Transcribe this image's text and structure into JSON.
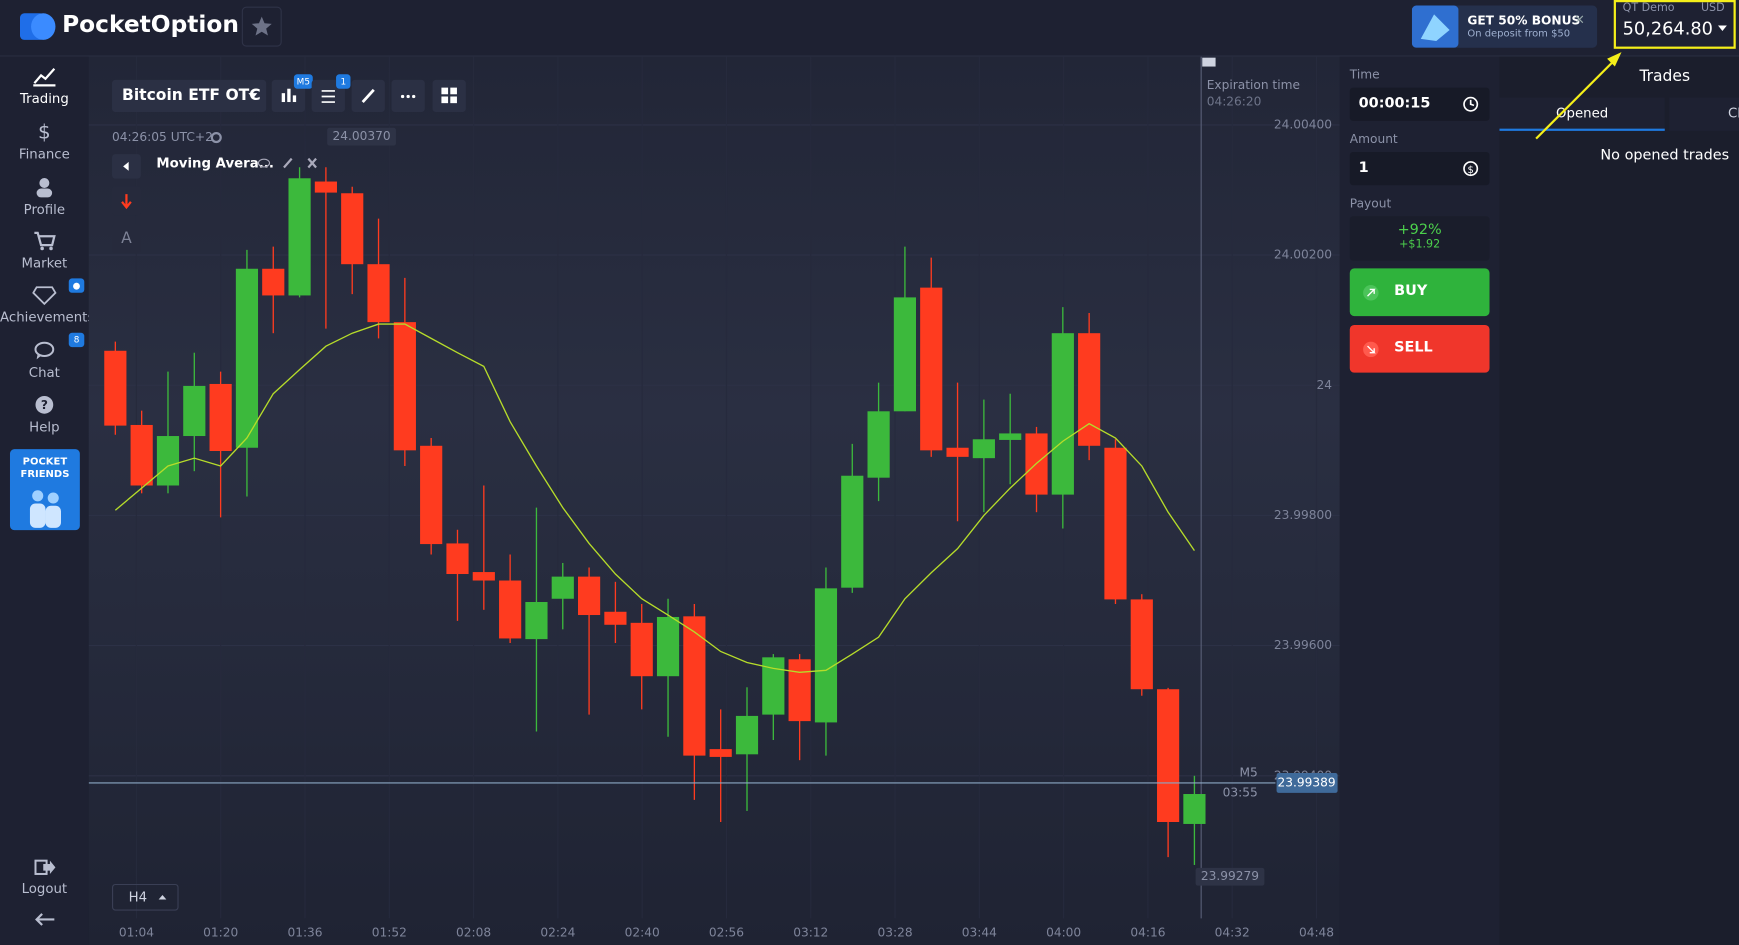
{
  "header": {
    "logo": "PocketOption",
    "bonus_title": "GET 50% BONUS",
    "bonus_subtitle": "On deposit from $50",
    "bonus_close": "×",
    "account_type": "QT Demo",
    "currency": "USD",
    "balance": "50,264.80"
  },
  "sidebar": {
    "items": [
      "Trading",
      "Finance",
      "Profile",
      "Market",
      "Achievements",
      "Chat",
      "Help"
    ],
    "chat_badge": "8",
    "promo": "POCKET FRIENDS",
    "logout": "Logout"
  },
  "drawing_tools": {
    "text": "A"
  },
  "chart_data": {
    "type": "candlestick",
    "asset": "Bitcoin ETF OTC",
    "timeframe_badge": "M5",
    "indicators_badge": "1",
    "clock": "04:26:05 UTC+2",
    "up_color": "#3cb93c",
    "down_color": "#ff3b1f",
    "open": [
      24.00053,
      23.99939,
      23.99846,
      23.99922,
      24.00002,
      23.99904,
      24.00179,
      24.00138,
      24.00313,
      24.00295,
      24.00186,
      24.00097,
      23.99907,
      23.99757,
      23.99713,
      23.997,
      23.9961,
      23.99672,
      23.99706,
      23.99652,
      23.99635,
      23.99553,
      23.99645,
      23.99441,
      23.99433,
      23.99494,
      23.99579,
      23.99482,
      23.99689,
      23.99858,
      23.9996,
      24.0015,
      23.99904,
      23.99888,
      23.99916,
      23.99926,
      23.99832,
      24.0008,
      23.99904,
      23.99671,
      23.99533,
      23.99326
    ],
    "high": [
      24.00067,
      23.99961,
      24.00021,
      24.0005,
      24.00021,
      24.00208,
      24.00213,
      24.00335,
      24.00335,
      24.00305,
      24.00256,
      24.00165,
      23.99919,
      23.99778,
      23.99846,
      23.9974,
      23.99812,
      23.99727,
      23.9972,
      23.99698,
      23.99664,
      23.99672,
      23.99664,
      23.99502,
      23.99536,
      23.99587,
      23.99587,
      23.9972,
      23.9991,
      24.00004,
      24.00213,
      24.00196,
      24.00004,
      23.99978,
      23.99987,
      23.99936,
      24.0012,
      24.00111,
      23.99917,
      23.99679,
      23.99535,
      23.994
    ],
    "low": [
      23.99924,
      23.99834,
      23.99834,
      23.99868,
      23.99797,
      23.99829,
      24.0008,
      24.00135,
      24.00087,
      24.0014,
      24.00072,
      23.99876,
      23.9974,
      23.99638,
      23.99655,
      23.99604,
      23.99468,
      23.99625,
      23.99494,
      23.99604,
      23.99502,
      23.9946,
      23.99363,
      23.99329,
      23.99346,
      23.99455,
      23.99424,
      23.99431,
      23.99681,
      23.99822,
      23.9996,
      23.9989,
      23.99791,
      23.99805,
      23.99848,
      23.99805,
      23.9978,
      23.99885,
      23.99664,
      23.99523,
      23.99275,
      23.99263
    ],
    "close": [
      23.99938,
      23.99846,
      23.99922,
      23.99999,
      23.99899,
      24.00179,
      24.00138,
      24.00318,
      24.00296,
      24.00186,
      24.00097,
      23.999,
      23.99756,
      23.9971,
      23.997,
      23.99611,
      23.99667,
      23.99706,
      23.99647,
      23.99632,
      23.99553,
      23.99644,
      23.99431,
      23.99429,
      23.99492,
      23.99582,
      23.99484,
      23.99688,
      23.99861,
      23.9996,
      24.00135,
      23.999,
      23.9989,
      23.99917,
      23.99926,
      23.99832,
      24.0008,
      23.99907,
      23.99671,
      23.99533,
      23.99329,
      23.99372
    ],
    "indicator": {
      "name": "Moving Avera...",
      "color": "#b6dc2a",
      "values": [
        23.99808,
        23.99842,
        23.99876,
        23.99888,
        23.99876,
        23.99919,
        23.99987,
        24.00024,
        24.0006,
        24.0008,
        24.00094,
        24.00094,
        24.00072,
        24.0005,
        24.00029,
        23.99944,
        23.99876,
        23.99812,
        23.99757,
        23.9971,
        23.99672,
        23.99647,
        23.99621,
        23.99591,
        23.99574,
        23.99565,
        23.99559,
        23.99562,
        23.99587,
        23.99613,
        23.99672,
        23.99712,
        23.99749,
        23.998,
        23.99842,
        23.9988,
        23.99914,
        23.99941,
        23.99919,
        23.99876,
        23.99805,
        23.99746
      ]
    },
    "ylim": [
      23.99181,
      24.00505
    ],
    "yticks": [
      {
        "value": 24.004,
        "label": "24.00400"
      },
      {
        "value": 24.002,
        "label": "24.00200"
      },
      24,
      {
        "value": 23.998,
        "label": "23.99800"
      },
      {
        "value": 23.996,
        "label": "23.99600"
      },
      {
        "value": 23.994,
        "label": "23.99400"
      }
    ],
    "time_labels": [
      "01:04",
      "01:20",
      "01:36",
      "01:52",
      "02:08",
      "02:24",
      "02:40",
      "02:56",
      "03:12",
      "03:28",
      "03:44",
      "04:00",
      "04:16",
      "04:32",
      "04:48"
    ],
    "max_label": {
      "value": 24.0037,
      "label": "24.00370"
    },
    "min_label": {
      "value": 23.99279,
      "label": "23.99279"
    },
    "current_price": {
      "value": 23.99389,
      "label": "23.99389"
    },
    "expiration": {
      "title": "Expiration time",
      "time": "04:26:20"
    },
    "candle_timeframe": "M5",
    "countdown": "03:55",
    "period": "H4"
  },
  "trade_panel": {
    "time_label": "Time",
    "time": "00:00:15",
    "amount_label": "Amount",
    "amount": "1",
    "payout_label": "Payout",
    "payout_percent": "+92%",
    "payout_amount": "+$1.92",
    "buy": "BUY",
    "sell": "SELL"
  },
  "trades_panel": {
    "title": "Trades",
    "tabs": [
      "Opened",
      "Cl"
    ],
    "empty": "No opened trades"
  }
}
